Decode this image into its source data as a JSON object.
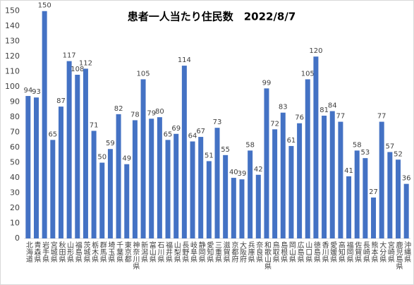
{
  "chart_data": {
    "type": "bar",
    "title": "患者一人当たり住民数　2022/8/7",
    "categories": [
      "北海道",
      "青森県",
      "岩手県",
      "宮城県",
      "秋田県",
      "山形県",
      "福島県",
      "茨城県",
      "栃木県",
      "群馬県",
      "埼玉県",
      "千葉県",
      "東京都",
      "神奈川県",
      "新潟県",
      "富山県",
      "石川県",
      "福井県",
      "山梨県",
      "長野県",
      "岐阜県",
      "静岡県",
      "愛知県",
      "三重県",
      "滋賀県",
      "京都府",
      "大阪府",
      "兵庫県",
      "奈良県",
      "和歌山県",
      "鳥取県",
      "島根県",
      "岡山県",
      "広島県",
      "山口県",
      "徳島県",
      "香川県",
      "愛媛県",
      "高知県",
      "福岡県",
      "佐賀県",
      "長崎県",
      "熊本県",
      "大分県",
      "宮崎県",
      "鹿児島県",
      "沖縄県"
    ],
    "values": [
      94,
      93,
      150,
      65,
      87,
      117,
      108,
      112,
      71,
      50,
      59,
      82,
      49,
      78,
      105,
      79,
      80,
      65,
      69,
      114,
      64,
      67,
      51,
      73,
      55,
      40,
      39,
      58,
      42,
      99,
      72,
      83,
      61,
      76,
      105,
      120,
      81,
      84,
      77,
      41,
      58,
      53,
      27,
      77,
      57,
      52,
      36
    ],
    "color": "#4472c4",
    "ylim": [
      0,
      155
    ],
    "yticks": [
      0,
      10,
      20,
      30,
      40,
      50,
      60,
      70,
      80,
      90,
      100,
      110,
      120,
      130,
      140,
      150
    ],
    "grid": false
  }
}
